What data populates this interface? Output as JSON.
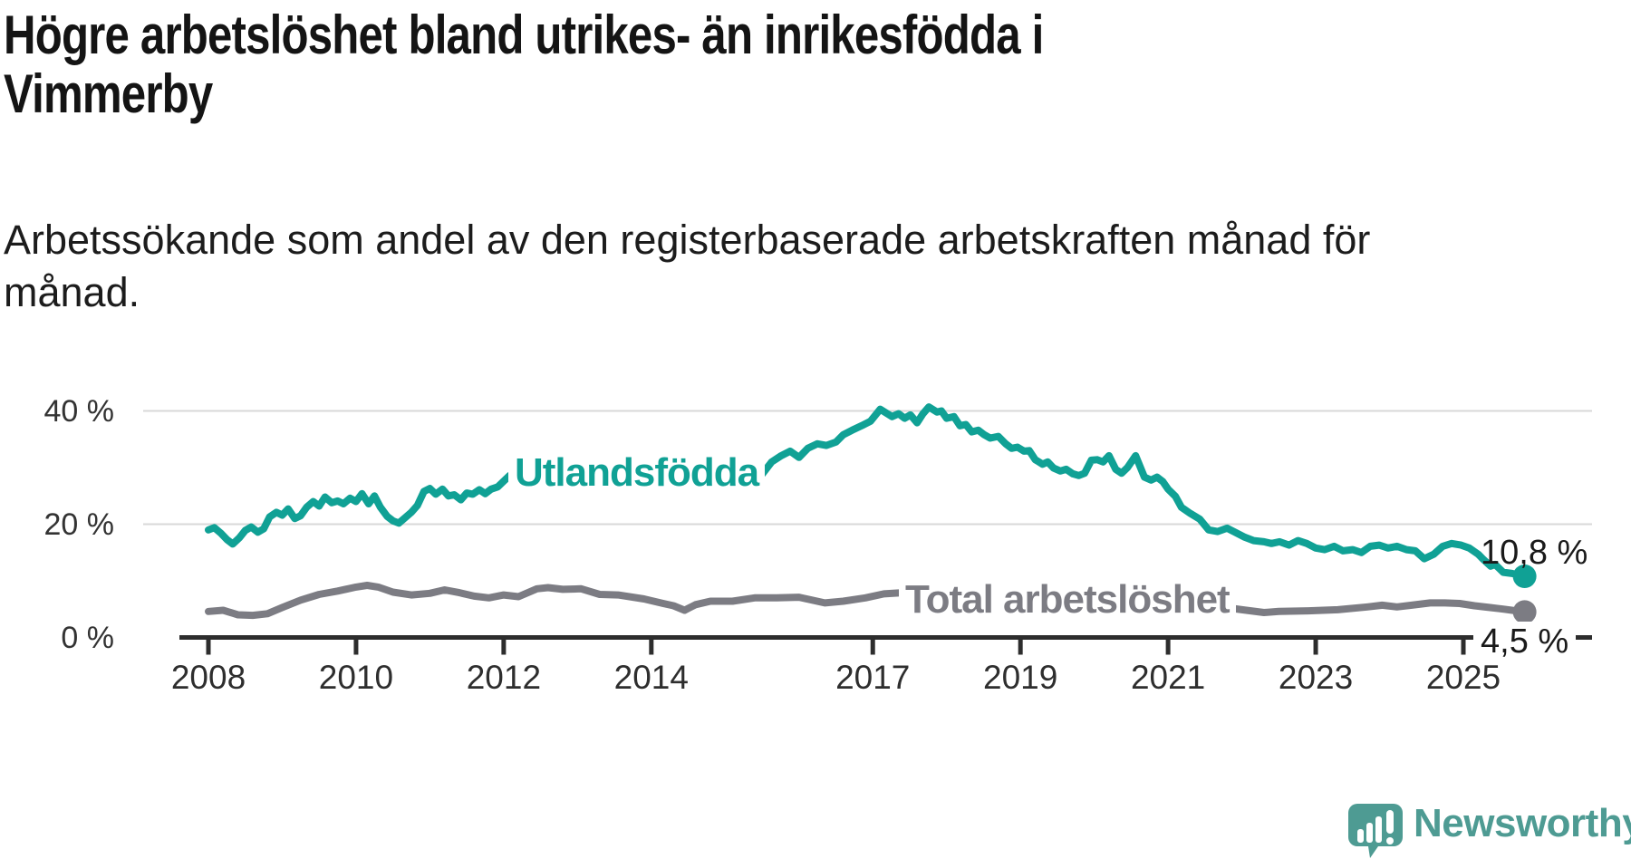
{
  "title_line1": "Högre arbetslöshet bland utrikes- än inrikesfödda i",
  "title_line2": "Vimmerby",
  "subtitle_line1": "Arbetssökande som andel av den registerbaserade arbetskraften månad för",
  "subtitle_line2": "månad.",
  "branding": {
    "logo_text": "Newsworthy",
    "logo_icon": "newsworthy-chart-speech-bubble-icon"
  },
  "colors": {
    "background": "#ffffff",
    "title_text": "#141414",
    "subtitle_text": "#1c1c1c",
    "axis_line": "#2d2d2d",
    "gridline": "#d8d8d8",
    "tick_label": "#2e2e2e",
    "end_label_text": "#1a1a1a",
    "series_utlandsfodda": "#10a195",
    "series_total": "#7c7c83",
    "logo_teal": "#4e9b93"
  },
  "chart_data": {
    "type": "line",
    "title": "Högre arbetslöshet bland utrikes- än inrikesfödda i Vimmerby",
    "subtitle": "Arbetssökande som andel av den registerbaserade arbetskraften månad för månad.",
    "unit": "%",
    "grid": "horizontal",
    "x_axis": {
      "min": 2008,
      "max": 2026,
      "ticks": [
        2008,
        2010,
        2012,
        2014,
        2017,
        2019,
        2021,
        2023,
        2025
      ],
      "tick_labels": [
        "2008",
        "2010",
        "2012",
        "2014",
        "2017",
        "2019",
        "2021",
        "2023",
        "2025"
      ]
    },
    "y_axis": {
      "min": 0,
      "max": 42,
      "ticks": [
        0,
        20,
        40
      ],
      "tick_labels": [
        "0 %",
        "20 %",
        "40 %"
      ]
    },
    "series": [
      {
        "name": "Utlandsfödda",
        "color": "#10a195",
        "end_label": "10,8 %",
        "end_value": 10.8,
        "points": [
          [
            2008.0,
            19.0
          ],
          [
            2008.08,
            19.4
          ],
          [
            2008.17,
            18.4
          ],
          [
            2008.25,
            17.3
          ],
          [
            2008.33,
            16.5
          ],
          [
            2008.42,
            17.6
          ],
          [
            2008.5,
            18.9
          ],
          [
            2008.58,
            19.5
          ],
          [
            2008.67,
            18.6
          ],
          [
            2008.75,
            19.2
          ],
          [
            2008.83,
            21.3
          ],
          [
            2008.92,
            22.1
          ],
          [
            2009.0,
            21.6
          ],
          [
            2009.08,
            22.7
          ],
          [
            2009.17,
            21.0
          ],
          [
            2009.25,
            21.5
          ],
          [
            2009.33,
            23.0
          ],
          [
            2009.42,
            24.0
          ],
          [
            2009.5,
            23.2
          ],
          [
            2009.58,
            24.8
          ],
          [
            2009.67,
            23.8
          ],
          [
            2009.75,
            24.1
          ],
          [
            2009.83,
            23.6
          ],
          [
            2009.92,
            24.6
          ],
          [
            2010.0,
            24.0
          ],
          [
            2010.08,
            25.4
          ],
          [
            2010.17,
            23.6
          ],
          [
            2010.25,
            25.0
          ],
          [
            2010.33,
            23.0
          ],
          [
            2010.42,
            21.4
          ],
          [
            2010.5,
            20.6
          ],
          [
            2010.58,
            20.2
          ],
          [
            2010.67,
            21.2
          ],
          [
            2010.75,
            22.1
          ],
          [
            2010.83,
            23.3
          ],
          [
            2010.92,
            25.8
          ],
          [
            2011.0,
            26.3
          ],
          [
            2011.08,
            25.3
          ],
          [
            2011.17,
            26.2
          ],
          [
            2011.25,
            25.0
          ],
          [
            2011.33,
            25.2
          ],
          [
            2011.42,
            24.3
          ],
          [
            2011.5,
            25.5
          ],
          [
            2011.58,
            25.3
          ],
          [
            2011.67,
            26.1
          ],
          [
            2011.75,
            25.4
          ],
          [
            2011.83,
            26.2
          ],
          [
            2011.92,
            26.6
          ],
          [
            2012.0,
            27.6
          ],
          [
            2012.08,
            28.6
          ],
          [
            2012.17,
            27.9
          ],
          [
            2012.25,
            28.3
          ],
          [
            2012.5,
            28.7
          ],
          [
            2012.75,
            29.0
          ],
          [
            2013.0,
            29.2
          ],
          [
            2013.25,
            29.4
          ],
          [
            2013.5,
            29.6
          ],
          [
            2013.75,
            29.8
          ],
          [
            2014.0,
            30.0
          ],
          [
            2014.25,
            30.1
          ],
          [
            2014.5,
            30.2
          ],
          [
            2014.75,
            30.4
          ],
          [
            2015.0,
            30.7
          ],
          [
            2015.2,
            32.2
          ],
          [
            2015.35,
            30.4
          ],
          [
            2015.5,
            28.8
          ],
          [
            2015.63,
            31.0
          ],
          [
            2015.76,
            32.1
          ],
          [
            2015.88,
            32.9
          ],
          [
            2016.0,
            31.8
          ],
          [
            2016.12,
            33.4
          ],
          [
            2016.25,
            34.2
          ],
          [
            2016.37,
            33.9
          ],
          [
            2016.5,
            34.5
          ],
          [
            2016.6,
            35.8
          ],
          [
            2016.72,
            36.6
          ],
          [
            2016.85,
            37.4
          ],
          [
            2016.97,
            38.2
          ],
          [
            2017.1,
            40.3
          ],
          [
            2017.26,
            39.0
          ],
          [
            2017.35,
            39.5
          ],
          [
            2017.43,
            38.7
          ],
          [
            2017.51,
            39.3
          ],
          [
            2017.6,
            37.9
          ],
          [
            2017.68,
            39.5
          ],
          [
            2017.76,
            40.7
          ],
          [
            2017.87,
            39.8
          ],
          [
            2017.93,
            40.0
          ],
          [
            2018.0,
            38.7
          ],
          [
            2018.1,
            39.0
          ],
          [
            2018.18,
            37.4
          ],
          [
            2018.26,
            37.6
          ],
          [
            2018.34,
            36.3
          ],
          [
            2018.43,
            36.6
          ],
          [
            2018.51,
            35.8
          ],
          [
            2018.59,
            35.2
          ],
          [
            2018.7,
            35.5
          ],
          [
            2018.8,
            34.2
          ],
          [
            2018.88,
            33.4
          ],
          [
            2018.96,
            33.6
          ],
          [
            2019.05,
            32.9
          ],
          [
            2019.12,
            33.0
          ],
          [
            2019.2,
            31.4
          ],
          [
            2019.3,
            30.6
          ],
          [
            2019.37,
            31.0
          ],
          [
            2019.45,
            29.9
          ],
          [
            2019.54,
            29.4
          ],
          [
            2019.62,
            29.7
          ],
          [
            2019.71,
            28.9
          ],
          [
            2019.79,
            28.6
          ],
          [
            2019.87,
            29.0
          ],
          [
            2019.96,
            31.3
          ],
          [
            2020.04,
            31.4
          ],
          [
            2020.12,
            31.0
          ],
          [
            2020.2,
            32.1
          ],
          [
            2020.29,
            29.7
          ],
          [
            2020.37,
            29.0
          ],
          [
            2020.45,
            30.0
          ],
          [
            2020.56,
            32.1
          ],
          [
            2020.68,
            28.3
          ],
          [
            2020.77,
            27.8
          ],
          [
            2020.85,
            28.3
          ],
          [
            2020.93,
            27.5
          ],
          [
            2021.0,
            26.2
          ],
          [
            2021.1,
            24.9
          ],
          [
            2021.18,
            23.0
          ],
          [
            2021.3,
            21.9
          ],
          [
            2021.43,
            20.9
          ],
          [
            2021.55,
            19.0
          ],
          [
            2021.67,
            18.7
          ],
          [
            2021.8,
            19.3
          ],
          [
            2021.92,
            18.5
          ],
          [
            2022.04,
            17.7
          ],
          [
            2022.16,
            17.1
          ],
          [
            2022.3,
            16.9
          ],
          [
            2022.4,
            16.6
          ],
          [
            2022.51,
            16.9
          ],
          [
            2022.64,
            16.3
          ],
          [
            2022.76,
            17.1
          ],
          [
            2022.88,
            16.6
          ],
          [
            2023.0,
            15.8
          ],
          [
            2023.12,
            15.5
          ],
          [
            2023.25,
            16.1
          ],
          [
            2023.37,
            15.3
          ],
          [
            2023.5,
            15.5
          ],
          [
            2023.62,
            15.0
          ],
          [
            2023.74,
            16.1
          ],
          [
            2023.86,
            16.3
          ],
          [
            2023.98,
            15.8
          ],
          [
            2024.1,
            16.1
          ],
          [
            2024.23,
            15.5
          ],
          [
            2024.35,
            15.3
          ],
          [
            2024.47,
            13.9
          ],
          [
            2024.6,
            14.7
          ],
          [
            2024.72,
            16.1
          ],
          [
            2024.84,
            16.6
          ],
          [
            2024.97,
            16.3
          ],
          [
            2025.08,
            15.8
          ],
          [
            2025.2,
            14.7
          ],
          [
            2025.26,
            13.9
          ],
          [
            2025.37,
            12.6
          ],
          [
            2025.43,
            12.9
          ],
          [
            2025.54,
            11.5
          ],
          [
            2025.66,
            11.3
          ],
          [
            2025.83,
            10.8
          ]
        ]
      },
      {
        "name": "Total arbetslöshet",
        "color": "#7c7c83",
        "end_label": "4,5 %",
        "end_value": 4.5,
        "points": [
          [
            2008.0,
            4.6
          ],
          [
            2008.2,
            4.8
          ],
          [
            2008.4,
            4.0
          ],
          [
            2008.6,
            3.9
          ],
          [
            2008.8,
            4.2
          ],
          [
            2009.0,
            5.3
          ],
          [
            2009.25,
            6.6
          ],
          [
            2009.5,
            7.6
          ],
          [
            2009.75,
            8.2
          ],
          [
            2010.0,
            8.9
          ],
          [
            2010.15,
            9.2
          ],
          [
            2010.3,
            8.9
          ],
          [
            2010.5,
            8.0
          ],
          [
            2010.75,
            7.5
          ],
          [
            2011.0,
            7.8
          ],
          [
            2011.2,
            8.4
          ],
          [
            2011.4,
            7.9
          ],
          [
            2011.6,
            7.3
          ],
          [
            2011.8,
            7.0
          ],
          [
            2012.0,
            7.5
          ],
          [
            2012.2,
            7.2
          ],
          [
            2012.45,
            8.6
          ],
          [
            2012.6,
            8.8
          ],
          [
            2012.8,
            8.5
          ],
          [
            2013.05,
            8.6
          ],
          [
            2013.3,
            7.6
          ],
          [
            2013.55,
            7.5
          ],
          [
            2013.9,
            6.8
          ],
          [
            2014.16,
            6.0
          ],
          [
            2014.3,
            5.6
          ],
          [
            2014.45,
            4.8
          ],
          [
            2014.6,
            5.8
          ],
          [
            2014.8,
            6.4
          ],
          [
            2015.1,
            6.4
          ],
          [
            2015.4,
            7.0
          ],
          [
            2015.7,
            7.0
          ],
          [
            2016.0,
            7.1
          ],
          [
            2016.35,
            6.1
          ],
          [
            2016.6,
            6.4
          ],
          [
            2016.9,
            7.0
          ],
          [
            2017.15,
            7.7
          ],
          [
            2017.4,
            7.9
          ],
          [
            2017.6,
            8.0
          ],
          [
            2018.0,
            7.4
          ],
          [
            2018.5,
            6.9
          ],
          [
            2019.0,
            6.6
          ],
          [
            2019.5,
            6.4
          ],
          [
            2020.0,
            6.8
          ],
          [
            2020.35,
            7.6
          ],
          [
            2020.7,
            7.3
          ],
          [
            2021.0,
            6.8
          ],
          [
            2021.5,
            5.8
          ],
          [
            2022.0,
            4.9
          ],
          [
            2022.3,
            4.4
          ],
          [
            2022.5,
            4.6
          ],
          [
            2022.9,
            4.7
          ],
          [
            2023.3,
            4.9
          ],
          [
            2023.7,
            5.4
          ],
          [
            2023.9,
            5.7
          ],
          [
            2024.1,
            5.4
          ],
          [
            2024.3,
            5.7
          ],
          [
            2024.55,
            6.1
          ],
          [
            2024.75,
            6.1
          ],
          [
            2024.95,
            6.0
          ],
          [
            2025.15,
            5.6
          ],
          [
            2025.35,
            5.3
          ],
          [
            2025.55,
            5.0
          ],
          [
            2025.83,
            4.5
          ]
        ]
      }
    ]
  }
}
